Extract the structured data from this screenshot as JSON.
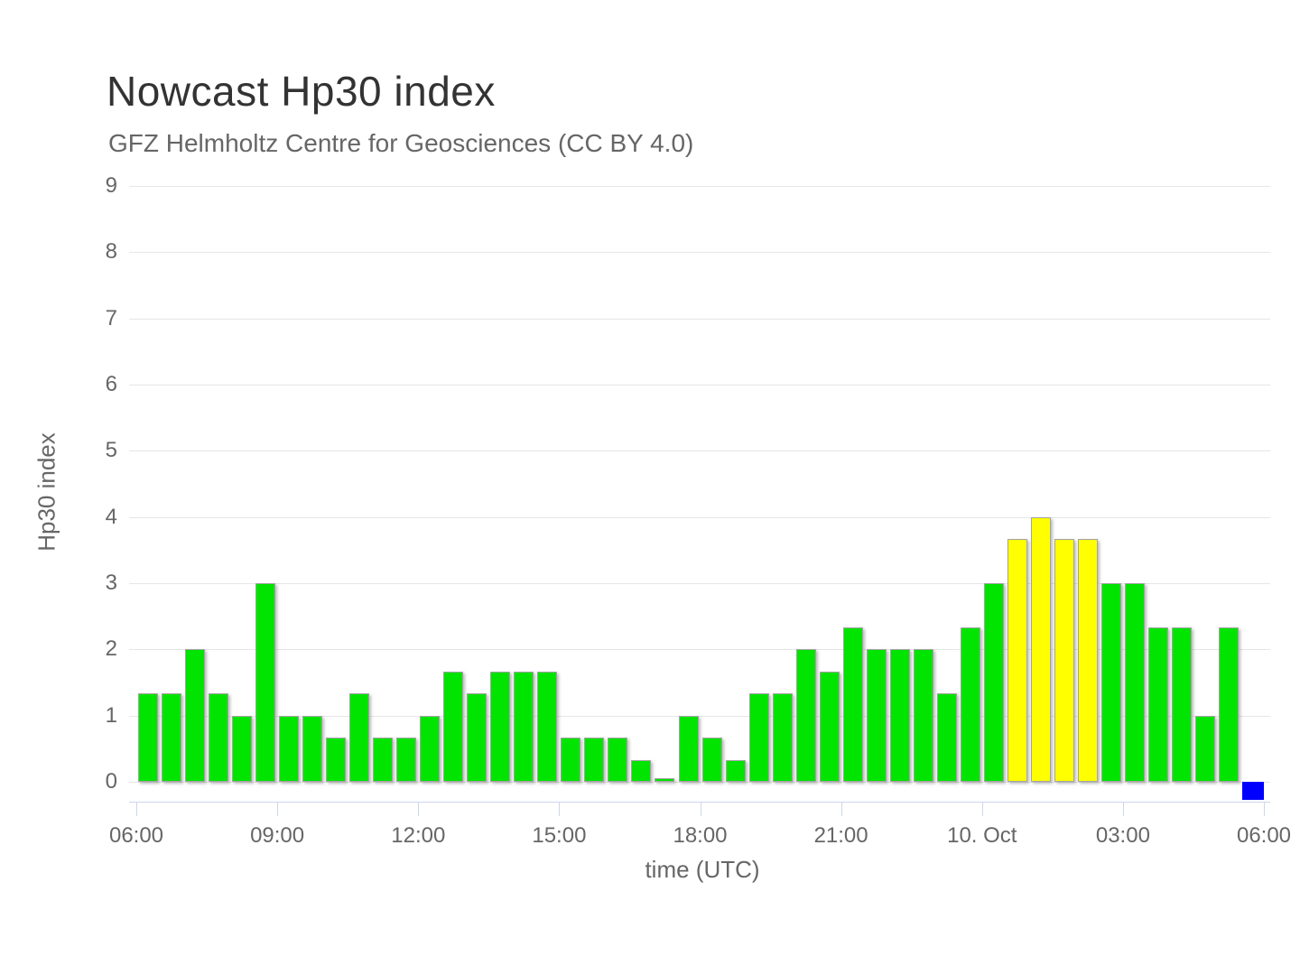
{
  "chart_data": {
    "type": "bar",
    "title": "Nowcast Hp30 index",
    "subtitle": "GFZ Helmholtz Centre for Geosciences (CC BY 4.0)",
    "xlabel": "time (UTC)",
    "ylabel": "Hp30 index",
    "ylim": [
      0,
      9
    ],
    "y_ticks": [
      0,
      1,
      2,
      3,
      4,
      5,
      6,
      7,
      8,
      9
    ],
    "x_tick_labels": [
      "06:00",
      "09:00",
      "12:00",
      "15:00",
      "18:00",
      "21:00",
      "10. Oct",
      "03:00",
      "06:00"
    ],
    "interval_minutes": 30,
    "grid": true,
    "legend_position": "none",
    "palette": {
      "green": "#00e400",
      "yellow": "#ffff00",
      "blue": "#0000ff"
    },
    "axis_line_color": "#ccd6eb",
    "grid_color": "#e6e6e6",
    "text_color": "#666666",
    "title_color": "#333333",
    "series": [
      {
        "time": "06:00",
        "value": 1.33,
        "color": "green"
      },
      {
        "time": "06:30",
        "value": 1.33,
        "color": "green"
      },
      {
        "time": "07:00",
        "value": 2.0,
        "color": "green"
      },
      {
        "time": "07:30",
        "value": 1.33,
        "color": "green"
      },
      {
        "time": "08:00",
        "value": 1.0,
        "color": "green"
      },
      {
        "time": "08:30",
        "value": 3.0,
        "color": "green"
      },
      {
        "time": "09:00",
        "value": 1.0,
        "color": "green"
      },
      {
        "time": "09:30",
        "value": 1.0,
        "color": "green"
      },
      {
        "time": "10:00",
        "value": 0.67,
        "color": "green"
      },
      {
        "time": "10:30",
        "value": 1.33,
        "color": "green"
      },
      {
        "time": "11:00",
        "value": 0.67,
        "color": "green"
      },
      {
        "time": "11:30",
        "value": 0.67,
        "color": "green"
      },
      {
        "time": "12:00",
        "value": 1.0,
        "color": "green"
      },
      {
        "time": "12:30",
        "value": 1.67,
        "color": "green"
      },
      {
        "time": "13:00",
        "value": 1.33,
        "color": "green"
      },
      {
        "time": "13:30",
        "value": 1.67,
        "color": "green"
      },
      {
        "time": "14:00",
        "value": 1.67,
        "color": "green"
      },
      {
        "time": "14:30",
        "value": 1.67,
        "color": "green"
      },
      {
        "time": "15:00",
        "value": 0.67,
        "color": "green"
      },
      {
        "time": "15:30",
        "value": 0.67,
        "color": "green"
      },
      {
        "time": "16:00",
        "value": 0.67,
        "color": "green"
      },
      {
        "time": "16:30",
        "value": 0.33,
        "color": "green"
      },
      {
        "time": "17:00",
        "value": 0.0,
        "color": "green"
      },
      {
        "time": "17:30",
        "value": 1.0,
        "color": "green"
      },
      {
        "time": "18:00",
        "value": 0.67,
        "color": "green"
      },
      {
        "time": "18:30",
        "value": 0.33,
        "color": "green"
      },
      {
        "time": "19:00",
        "value": 1.33,
        "color": "green"
      },
      {
        "time": "19:30",
        "value": 1.33,
        "color": "green"
      },
      {
        "time": "20:00",
        "value": 2.0,
        "color": "green"
      },
      {
        "time": "20:30",
        "value": 1.67,
        "color": "green"
      },
      {
        "time": "21:00",
        "value": 2.33,
        "color": "green"
      },
      {
        "time": "21:30",
        "value": 2.0,
        "color": "green"
      },
      {
        "time": "22:00",
        "value": 2.0,
        "color": "green"
      },
      {
        "time": "22:30",
        "value": 2.0,
        "color": "green"
      },
      {
        "time": "23:00",
        "value": 1.33,
        "color": "green"
      },
      {
        "time": "23:30",
        "value": 2.33,
        "color": "green"
      },
      {
        "time": "00:00",
        "value": 3.0,
        "color": "green"
      },
      {
        "time": "00:30",
        "value": 3.67,
        "color": "yellow"
      },
      {
        "time": "01:00",
        "value": 4.0,
        "color": "yellow"
      },
      {
        "time": "01:30",
        "value": 3.67,
        "color": "yellow"
      },
      {
        "time": "02:00",
        "value": 3.67,
        "color": "yellow"
      },
      {
        "time": "02:30",
        "value": 3.0,
        "color": "green"
      },
      {
        "time": "03:00",
        "value": 3.0,
        "color": "green"
      },
      {
        "time": "03:30",
        "value": 2.33,
        "color": "green"
      },
      {
        "time": "04:00",
        "value": 2.33,
        "color": "green"
      },
      {
        "time": "04:30",
        "value": 1.0,
        "color": "green"
      },
      {
        "time": "05:00",
        "value": 2.33,
        "color": "green"
      },
      {
        "time": "05:30",
        "value": 0.0,
        "color": "blue",
        "marker": true
      }
    ]
  }
}
